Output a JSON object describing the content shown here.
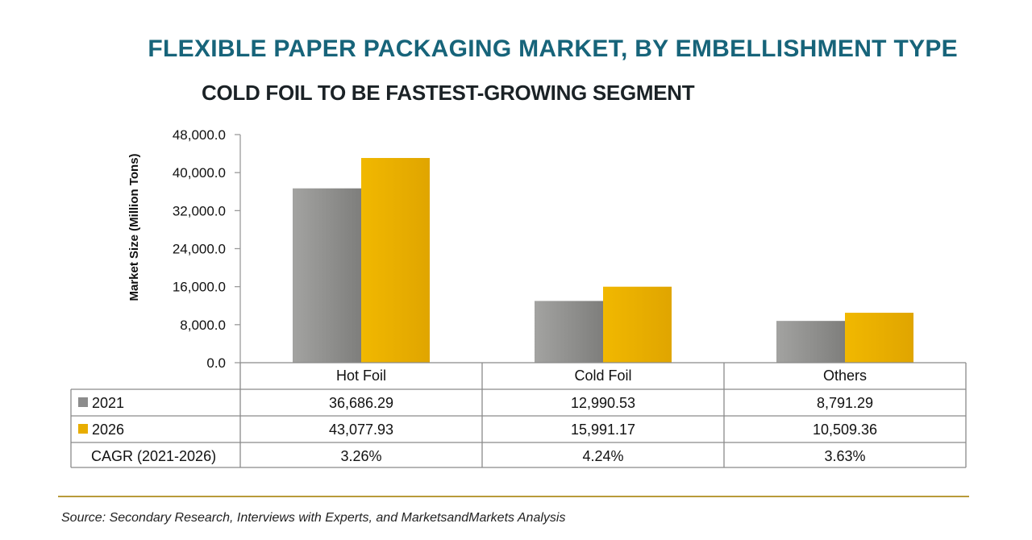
{
  "chart_data": {
    "type": "bar",
    "title": "FLEXIBLE PAPER PACKAGING MARKET, BY EMBELLISHMENT TYPE",
    "subtitle": "COLD FOIL TO BE FASTEST-GROWING SEGMENT",
    "ylabel": "Market Size (Million Tons)",
    "xlabel": "",
    "ylim": [
      0,
      48000
    ],
    "yticks": [
      0,
      8000,
      16000,
      24000,
      32000,
      40000,
      48000
    ],
    "ytick_labels": [
      "0.0",
      "8,000.0",
      "16,000.0",
      "24,000.0",
      "32,000.0",
      "40,000.0",
      "48,000.0"
    ],
    "categories": [
      "Hot Foil",
      "Cold Foil",
      "Others"
    ],
    "series": [
      {
        "name": "2021",
        "color": "#8c8c8c",
        "values": [
          36686.29,
          12990.53,
          8791.29
        ],
        "labels": [
          "36,686.29",
          "12,990.53",
          "8,791.29"
        ]
      },
      {
        "name": "2026",
        "color": "#e8ad00",
        "values": [
          43077.93,
          15991.17,
          10509.36
        ],
        "labels": [
          "43,077.93",
          "15,991.17",
          "10,509.36"
        ]
      }
    ],
    "cagr": {
      "label": "CAGR (2021-2026)",
      "values": [
        "3.26%",
        "4.24%",
        "3.63%"
      ]
    },
    "legend": "data-table"
  },
  "source": "Source: Secondary Research, Interviews with Experts, and MarketsandMarkets Analysis",
  "colors": {
    "title": "#17647a",
    "rule": "#b89a3a"
  }
}
